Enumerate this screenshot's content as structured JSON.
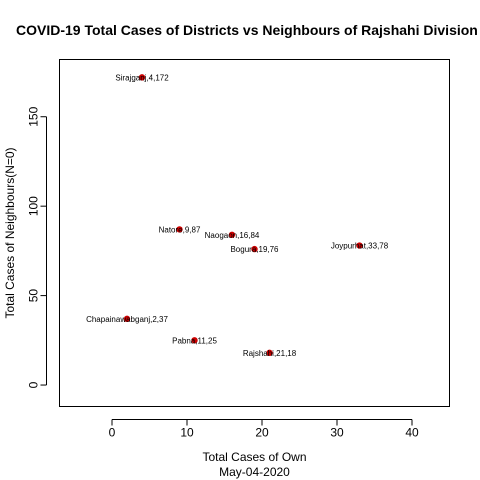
{
  "chart_data": {
    "type": "scatter",
    "title": "COVID-19 Total Cases of Districts vs Neighbours of Rajshahi Division",
    "xlabel": "Total Cases of Own",
    "subtitle": "May-04-2020",
    "ylabel": "Total Cases of Neighbours(N=0)",
    "xlim": [
      -7,
      45
    ],
    "ylim": [
      -12,
      182
    ],
    "xticks": [
      0,
      10,
      20,
      30,
      40
    ],
    "yticks": [
      0,
      50,
      100,
      150
    ],
    "grid": false,
    "point_color": "#cc0000",
    "points": [
      {
        "label": "Sirajganj,4,172",
        "x": 4,
        "y": 172
      },
      {
        "label": "Natore,9,87",
        "x": 9,
        "y": 87
      },
      {
        "label": "Naogaon,16,84",
        "x": 16,
        "y": 84
      },
      {
        "label": "Bogura,19,76",
        "x": 19,
        "y": 76
      },
      {
        "label": "Joypurhat,33,78",
        "x": 33,
        "y": 78
      },
      {
        "label": "Chapainawabganj,2,37",
        "x": 2,
        "y": 37
      },
      {
        "label": "Pabna,11,25",
        "x": 11,
        "y": 25
      },
      {
        "label": "Rajshahi,21,18",
        "x": 21,
        "y": 18
      }
    ]
  }
}
